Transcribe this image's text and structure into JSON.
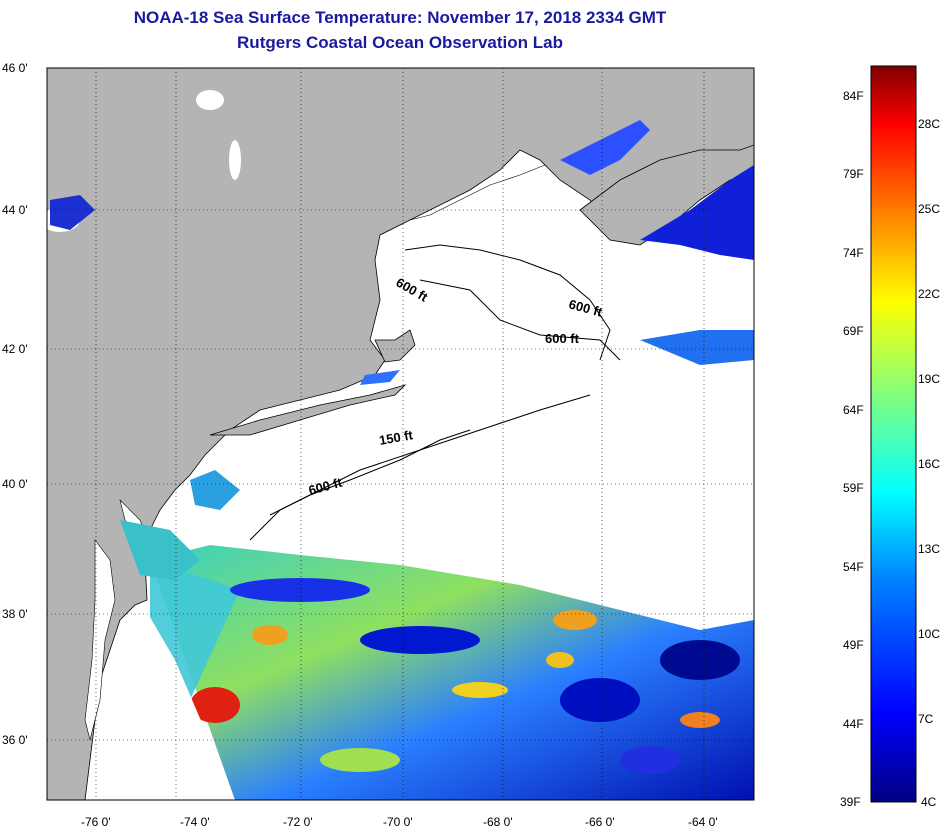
{
  "header": {
    "title": "NOAA-18 Sea Surface Temperature:  November 17, 2018 2334 GMT",
    "subtitle": "Rutgers Coastal Ocean Observation Lab"
  },
  "map": {
    "lon_labels": [
      "-76 0'",
      "-74 0'",
      "-72 0'",
      "-70 0'",
      "-68 0'",
      "-66 0'",
      "-64 0'"
    ],
    "lat_labels": [
      "46 0'",
      "44 0'",
      "42 0'",
      "40 0'",
      "38 0'",
      "36 0'"
    ],
    "depth_labels": [
      "600 ft",
      "600 ft",
      "600 ft",
      "150 ft",
      "600 ft"
    ],
    "colors": {
      "land": "#b4b4b4",
      "cloud": "#ffffff",
      "coast": "#000000"
    }
  },
  "colorbar": {
    "fahrenheit": [
      "84F",
      "79F",
      "74F",
      "69F",
      "64F",
      "59F",
      "54F",
      "49F",
      "44F",
      "39F"
    ],
    "celsius": [
      "28C",
      "25C",
      "22C",
      "19C",
      "16C",
      "13C",
      "10C",
      "7C",
      "4C"
    ],
    "gradient": [
      "#00007f",
      "#0000ff",
      "#0080ff",
      "#00ffff",
      "#80ff80",
      "#ffff00",
      "#ff8000",
      "#ff0000",
      "#7f0000"
    ]
  }
}
